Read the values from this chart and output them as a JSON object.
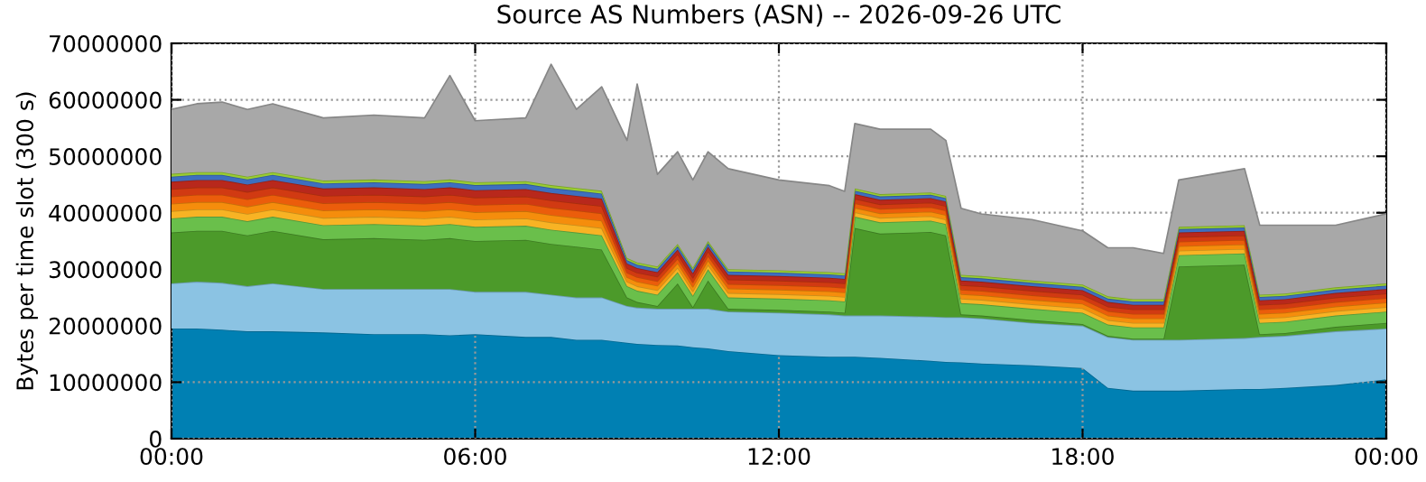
{
  "chart_data": {
    "type": "area",
    "stacked": true,
    "title": "Source AS Numbers (ASN) -- 2026-09-26 UTC",
    "ylabel": "Bytes per time slot (300 s)",
    "x": [
      0,
      0.5,
      1,
      1.5,
      2,
      3,
      4,
      5,
      5.5,
      6,
      7,
      7.5,
      8,
      8.5,
      9,
      9.2,
      9.6,
      10,
      10.3,
      10.6,
      11,
      12,
      13,
      13.3,
      13.5,
      14,
      15,
      15.3,
      15.6,
      16,
      17,
      18,
      18.5,
      19,
      19.6,
      19.9,
      21.2,
      21.5,
      22,
      23,
      24
    ],
    "xlim": [
      0,
      24
    ],
    "xticks": [
      {
        "value": 0,
        "label": "00:00"
      },
      {
        "value": 6,
        "label": "06:00"
      },
      {
        "value": 12,
        "label": "12:00"
      },
      {
        "value": 18,
        "label": "18:00"
      },
      {
        "value": 24,
        "label": "00:00"
      }
    ],
    "ylim": [
      0,
      70000000
    ],
    "yticks": [
      0,
      10000000,
      20000000,
      30000000,
      40000000,
      50000000,
      60000000,
      70000000
    ],
    "grid": true,
    "marker": "none",
    "series": [
      {
        "color": "#0080b3",
        "values": [
          19500000,
          19500000,
          19300000,
          19000000,
          19000000,
          18800000,
          18500000,
          18500000,
          18300000,
          18500000,
          18000000,
          18000000,
          17500000,
          17500000,
          17000000,
          16800000,
          16600000,
          16500000,
          16200000,
          16000000,
          15500000,
          14800000,
          14500000,
          14500000,
          14500000,
          14300000,
          13800000,
          13600000,
          13500000,
          13300000,
          13000000,
          12500000,
          9000000,
          8500000,
          8500000,
          8500000,
          8800000,
          8800000,
          9000000,
          9500000,
          10500000
        ]
      },
      {
        "color": "#8bc3e3",
        "values": [
          8000000,
          8300000,
          8300000,
          8000000,
          8500000,
          7700000,
          8000000,
          8000000,
          8200000,
          7500000,
          8000000,
          7500000,
          7500000,
          7500000,
          6500000,
          6400000,
          6400000,
          6500000,
          6800000,
          7000000,
          7000000,
          7500000,
          7500000,
          7300000,
          7300000,
          7500000,
          7800000,
          7900000,
          8000000,
          8000000,
          7500000,
          7500000,
          9000000,
          9000000,
          9000000,
          9000000,
          9000000,
          9200000,
          9200000,
          9500000,
          9000000
        ]
      },
      {
        "color": "#4c9a2a",
        "values": [
          9000000,
          9000000,
          9200000,
          9000000,
          9300000,
          8800000,
          9000000,
          8700000,
          9000000,
          9000000,
          9200000,
          9000000,
          9000000,
          8500000,
          1500000,
          1000000,
          500000,
          4500000,
          300000,
          5000000,
          500000,
          500000,
          500000,
          500000,
          15500000,
          14500000,
          15000000,
          14500000,
          500000,
          500000,
          500000,
          300000,
          200000,
          200000,
          200000,
          13000000,
          13000000,
          500000,
          500000,
          800000,
          1000000
        ]
      },
      {
        "color": "#6abf4b",
        "values": [
          2500000,
          2500000,
          2500000,
          2500000,
          2500000,
          2500000,
          2500000,
          2500000,
          2500000,
          2500000,
          2500000,
          2500000,
          2500000,
          2500000,
          2000000,
          2000000,
          2000000,
          2000000,
          2000000,
          2000000,
          2000000,
          2000000,
          2000000,
          2000000,
          2000000,
          2000000,
          2000000,
          2000000,
          2000000,
          2000000,
          2000000,
          2000000,
          2000000,
          2000000,
          2000000,
          2000000,
          2000000,
          2000000,
          2000000,
          2000000,
          2000000
        ]
      },
      {
        "color": "#f8b324",
        "values": [
          1300000,
          1300000,
          1300000,
          1300000,
          1300000,
          1300000,
          1300000,
          1300000,
          1300000,
          1300000,
          1300000,
          1300000,
          1300000,
          1300000,
          800000,
          800000,
          800000,
          800000,
          800000,
          800000,
          800000,
          800000,
          800000,
          800000,
          800000,
          800000,
          800000,
          800000,
          800000,
          800000,
          800000,
          800000,
          800000,
          800000,
          800000,
          800000,
          800000,
          800000,
          800000,
          800000,
          800000
        ]
      },
      {
        "color": "#f58d0c",
        "values": [
          1300000,
          1300000,
          1300000,
          1300000,
          1300000,
          1300000,
          1300000,
          1300000,
          1300000,
          1300000,
          1300000,
          1300000,
          1300000,
          1300000,
          800000,
          800000,
          800000,
          800000,
          800000,
          800000,
          800000,
          800000,
          800000,
          800000,
          800000,
          800000,
          800000,
          800000,
          800000,
          800000,
          800000,
          800000,
          800000,
          800000,
          800000,
          800000,
          800000,
          800000,
          800000,
          800000,
          800000
        ]
      },
      {
        "color": "#eb5d0b",
        "values": [
          1300000,
          1300000,
          1300000,
          1300000,
          1300000,
          1300000,
          1300000,
          1300000,
          1300000,
          1300000,
          1300000,
          1300000,
          1300000,
          1300000,
          800000,
          800000,
          800000,
          800000,
          800000,
          800000,
          800000,
          800000,
          800000,
          800000,
          800000,
          800000,
          800000,
          800000,
          800000,
          800000,
          800000,
          800000,
          800000,
          800000,
          800000,
          800000,
          800000,
          800000,
          800000,
          800000,
          800000
        ]
      },
      {
        "color": "#d13a12",
        "values": [
          1300000,
          1300000,
          1300000,
          1300000,
          1300000,
          1300000,
          1300000,
          1300000,
          1300000,
          1300000,
          1300000,
          1300000,
          1300000,
          1300000,
          800000,
          800000,
          800000,
          800000,
          800000,
          800000,
          800000,
          800000,
          800000,
          800000,
          800000,
          800000,
          800000,
          800000,
          800000,
          800000,
          800000,
          800000,
          800000,
          800000,
          800000,
          800000,
          800000,
          800000,
          800000,
          800000,
          800000
        ]
      },
      {
        "color": "#b8281c",
        "values": [
          1300000,
          1300000,
          1300000,
          1300000,
          1300000,
          1300000,
          1300000,
          1300000,
          1300000,
          1300000,
          1300000,
          1300000,
          1300000,
          1300000,
          800000,
          800000,
          800000,
          800000,
          800000,
          800000,
          800000,
          800000,
          800000,
          800000,
          800000,
          800000,
          800000,
          800000,
          800000,
          800000,
          800000,
          800000,
          800000,
          800000,
          800000,
          800000,
          800000,
          800000,
          800000,
          800000,
          800000
        ]
      },
      {
        "color": "#3d6fbf",
        "values": [
          900000,
          900000,
          900000,
          900000,
          900000,
          900000,
          900000,
          900000,
          900000,
          900000,
          900000,
          900000,
          900000,
          900000,
          600000,
          600000,
          600000,
          600000,
          600000,
          600000,
          600000,
          600000,
          600000,
          600000,
          600000,
          600000,
          600000,
          600000,
          600000,
          600000,
          600000,
          600000,
          600000,
          600000,
          600000,
          600000,
          600000,
          600000,
          600000,
          600000,
          600000
        ]
      },
      {
        "color": "#9acd32",
        "values": [
          500000,
          500000,
          500000,
          500000,
          500000,
          500000,
          500000,
          500000,
          500000,
          500000,
          500000,
          500000,
          500000,
          500000,
          400000,
          400000,
          400000,
          400000,
          400000,
          400000,
          400000,
          400000,
          400000,
          400000,
          400000,
          400000,
          400000,
          400000,
          400000,
          400000,
          400000,
          400000,
          400000,
          400000,
          400000,
          400000,
          400000,
          400000,
          400000,
          400000,
          400000
        ]
      },
      {
        "color": "#a8a8a8",
        "values": [
          11400000,
          12100000,
          12400000,
          11900000,
          12100000,
          11100000,
          11400000,
          11200000,
          18400000,
          10900000,
          11200000,
          21400000,
          13900000,
          18400000,
          20800000,
          31600000,
          16300000,
          16300000,
          15500000,
          15800000,
          17800000,
          16000000,
          15300000,
          14500000,
          11500000,
          11500000,
          11200000,
          9800000,
          11800000,
          11000000,
          10800000,
          9500000,
          8600000,
          9100000,
          8100000,
          8300000,
          10000000,
          12300000,
          12100000,
          11000000,
          12300000
        ]
      }
    ]
  }
}
